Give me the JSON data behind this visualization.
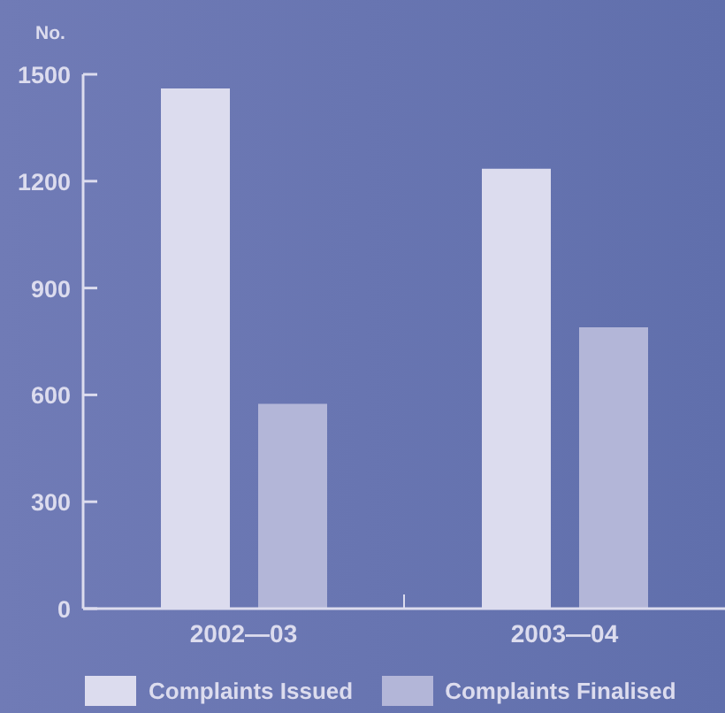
{
  "chart_data": {
    "type": "bar",
    "ylabel": "No.",
    "categories": [
      "2002—03",
      "2003—04"
    ],
    "series": [
      {
        "name": "Complaints Issued",
        "color": "#dcdcee",
        "values": [
          1460,
          1235
        ]
      },
      {
        "name": "Complaints Finalised",
        "color": "#b3b6d8",
        "values": [
          575,
          790
        ]
      }
    ],
    "ylim": [
      0,
      1500
    ],
    "yticks": [
      0,
      300,
      600,
      900,
      1200,
      1500
    ],
    "grid": false,
    "legend": "bottom"
  }
}
